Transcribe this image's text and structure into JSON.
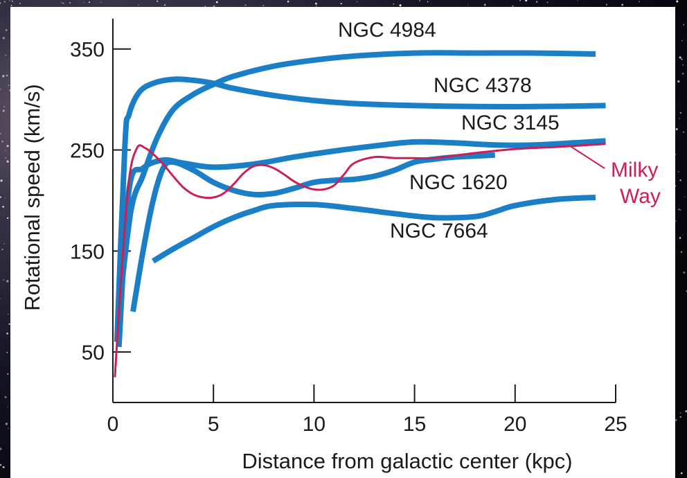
{
  "chart_data": {
    "type": "line",
    "title": "",
    "xlabel": "Distance from galactic center (kpc)",
    "ylabel": "Rotational speed (km/s)",
    "xlim": [
      0,
      25
    ],
    "ylim": [
      0,
      380
    ],
    "xticks": [
      0,
      5,
      10,
      15,
      20,
      25
    ],
    "yticks": [
      50,
      150,
      250,
      350
    ],
    "grid": false,
    "colors": {
      "galaxy_line": "#1a7fc6",
      "milky_way_line": "#cc1f55",
      "plot_background": "#ffffff",
      "page_background": "#000000"
    },
    "series": [
      {
        "name": "NGC 4984",
        "x": [
          0.3,
          0.9,
          1.5,
          2.2,
          3.0,
          4.0,
          5.0,
          6.0,
          8.0,
          10.0,
          12.0,
          15.0,
          18.0,
          21.0,
          24.0
        ],
        "y": [
          90,
          190,
          225,
          262,
          290,
          305,
          315,
          323,
          333,
          339,
          343,
          346,
          346,
          346,
          345
        ]
      },
      {
        "name": "NGC 4378",
        "x": [
          0.2,
          0.6,
          0.8,
          1.3,
          2.0,
          3.0,
          4.0,
          5.0,
          6.0,
          8.0,
          10.0,
          12.0,
          15.0,
          18.0,
          21.0,
          24.5
        ],
        "y": [
          60,
          255,
          285,
          307,
          316,
          320,
          319,
          316,
          311,
          304,
          299,
          296,
          294,
          293,
          293,
          294
        ]
      },
      {
        "name": "NGC 3145",
        "x": [
          0.3,
          0.8,
          1.5,
          2.5,
          3.5,
          5.0,
          7.0,
          9.0,
          11.0,
          13.0,
          15.0,
          17.0,
          19.0,
          21.0,
          24.5
        ],
        "y": [
          55,
          210,
          232,
          240,
          237,
          233,
          236,
          243,
          249,
          254,
          258,
          257,
          255,
          255,
          259
        ]
      },
      {
        "name": "NGC 1620",
        "x": [
          1.0,
          1.5,
          2.0,
          2.5,
          3.0,
          4.0,
          5.0,
          6.0,
          7.0,
          8.0,
          9.0,
          10.0,
          11.0,
          12.0,
          13.0,
          14.0,
          15.0,
          16.0,
          17.0,
          18.0,
          19.0
        ],
        "y": [
          90,
          150,
          200,
          232,
          238,
          230,
          218,
          210,
          206,
          207,
          212,
          218,
          220,
          221,
          224,
          230,
          238,
          241,
          243,
          244,
          245
        ]
      },
      {
        "name": "NGC 7664",
        "x": [
          2.0,
          3.0,
          4.0,
          5.0,
          6.0,
          7.0,
          8.0,
          10.0,
          12.0,
          14.0,
          16.0,
          18.0,
          19.0,
          20.0,
          22.0,
          24.0
        ],
        "y": [
          140,
          152,
          163,
          174,
          183,
          190,
          195,
          196,
          192,
          187,
          183,
          184,
          189,
          195,
          201,
          203
        ]
      },
      {
        "name": "Milky Way",
        "x": [
          0.1,
          0.4,
          0.8,
          1.2,
          1.6,
          2.0,
          2.5,
          3.0,
          3.5,
          4.0,
          4.5,
          5.0,
          5.5,
          6.0,
          6.5,
          7.0,
          7.5,
          8.0,
          8.5,
          9.0,
          9.5,
          10.0,
          10.5,
          11.0,
          11.5,
          12.0,
          13.0,
          14.0,
          15.0,
          16.0,
          18.0,
          20.0,
          22.0,
          24.5
        ],
        "y": [
          25,
          120,
          220,
          252,
          252,
          246,
          236,
          224,
          213,
          206,
          203,
          203,
          207,
          216,
          227,
          234,
          235,
          232,
          226,
          219,
          214,
          211,
          211,
          215,
          226,
          237,
          243,
          242,
          242,
          242,
          247,
          251,
          253,
          256
        ]
      }
    ],
    "annotations": {
      "milky_way_1": "Milky",
      "milky_way_2": "Way"
    }
  }
}
